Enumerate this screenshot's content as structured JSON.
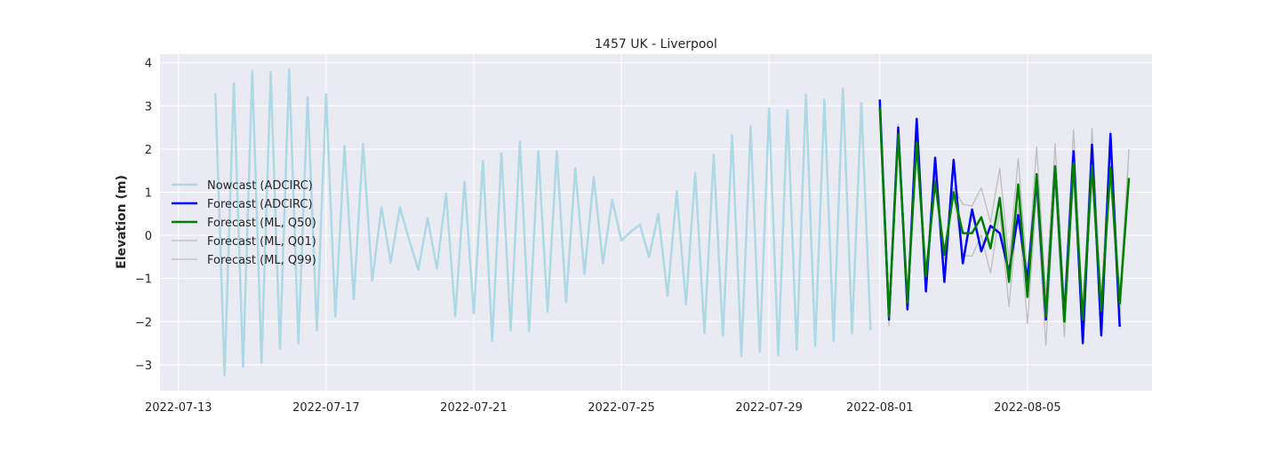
{
  "chart_data": {
    "type": "line",
    "title": "1457 UK - Liverpool",
    "xlabel": "",
    "ylabel": "Elevation (m)",
    "x_type": "date",
    "xlim": [
      "2022-07-12T12:00",
      "2022-08-08T09:00"
    ],
    "ylim": [
      -3.6,
      4.2
    ],
    "xticks": [
      "2022-07-13",
      "2022-07-17",
      "2022-07-21",
      "2022-07-25",
      "2022-07-29",
      "2022-08-01",
      "2022-08-05"
    ],
    "yticks": [
      -3,
      -2,
      -1,
      0,
      1,
      2,
      3,
      4
    ],
    "ytick_labels": [
      "−3",
      "−2",
      "−1",
      "0",
      "1",
      "2",
      "3",
      "4"
    ],
    "grid": true,
    "legend_position": "center-left",
    "series": [
      {
        "name": "Nowcast (ADCIRC)",
        "color": "#add8e6",
        "x": [
          "2022-07-14T00:00",
          "2022-07-14T06:00",
          "2022-07-14T12:00",
          "2022-07-14T18:00",
          "2022-07-15T00:00",
          "2022-07-15T06:00",
          "2022-07-15T12:00",
          "2022-07-15T18:00",
          "2022-07-16T00:00",
          "2022-07-16T06:00",
          "2022-07-16T12:00",
          "2022-07-16T18:00",
          "2022-07-17T00:00",
          "2022-07-17T06:00",
          "2022-07-17T12:00",
          "2022-07-17T18:00",
          "2022-07-18T00:00",
          "2022-07-18T06:00",
          "2022-07-18T12:00",
          "2022-07-18T18:00",
          "2022-07-19T00:00",
          "2022-07-19T06:00",
          "2022-07-19T12:00",
          "2022-07-19T18:00",
          "2022-07-20T00:00",
          "2022-07-20T06:00",
          "2022-07-20T12:00",
          "2022-07-20T18:00",
          "2022-07-21T00:00",
          "2022-07-21T06:00",
          "2022-07-21T12:00",
          "2022-07-21T18:00",
          "2022-07-22T00:00",
          "2022-07-22T06:00",
          "2022-07-22T12:00",
          "2022-07-22T18:00",
          "2022-07-23T00:00",
          "2022-07-23T06:00",
          "2022-07-23T12:00",
          "2022-07-23T18:00",
          "2022-07-24T00:00",
          "2022-07-24T06:00",
          "2022-07-24T12:00",
          "2022-07-24T18:00",
          "2022-07-25T00:00",
          "2022-07-25T06:00",
          "2022-07-25T12:00",
          "2022-07-25T18:00",
          "2022-07-26T00:00",
          "2022-07-26T06:00",
          "2022-07-26T12:00",
          "2022-07-26T18:00",
          "2022-07-27T00:00",
          "2022-07-27T06:00",
          "2022-07-27T12:00",
          "2022-07-27T18:00",
          "2022-07-28T00:00",
          "2022-07-28T06:00",
          "2022-07-28T12:00",
          "2022-07-28T18:00",
          "2022-07-29T00:00",
          "2022-07-29T06:00",
          "2022-07-29T12:00",
          "2022-07-29T18:00",
          "2022-07-30T00:00",
          "2022-07-30T06:00",
          "2022-07-30T12:00",
          "2022-07-30T18:00",
          "2022-07-31T00:00",
          "2022-07-31T06:00",
          "2022-07-31T12:00",
          "2022-07-31T18:00"
        ],
        "values": [
          3.3,
          -3.25,
          3.52,
          -3.05,
          3.8,
          -2.95,
          3.78,
          -2.63,
          3.85,
          -2.5,
          3.2,
          -2.2,
          3.27,
          -1.88,
          2.07,
          -1.48,
          2.12,
          -1.05,
          0.65,
          -0.63,
          0.65,
          -0.1,
          -0.8,
          0.4,
          -0.77,
          0.97,
          -1.87,
          1.25,
          -1.8,
          1.72,
          -2.45,
          1.9,
          -2.2,
          2.17,
          -2.22,
          1.95,
          -1.78,
          1.95,
          -1.55,
          1.55,
          -0.9,
          1.35,
          -0.65,
          0.83,
          -0.12,
          0.08,
          0.25,
          -0.5,
          0.5,
          -1.4,
          1.02,
          -1.6,
          1.45,
          -2.27,
          1.86,
          -2.33,
          2.32,
          -2.8,
          2.52,
          -2.7,
          2.95,
          -2.78,
          2.9,
          -2.65,
          3.27,
          -2.57,
          3.15,
          -2.45,
          3.4,
          -2.27,
          3.07,
          -2.2
        ]
      },
      {
        "name": "Forecast (ADCIRC)",
        "color": "#0000ff",
        "x": [
          "2022-08-01T00:00",
          "2022-08-01T06:00",
          "2022-08-01T12:00",
          "2022-08-01T18:00",
          "2022-08-02T00:00",
          "2022-08-02T06:00",
          "2022-08-02T12:00",
          "2022-08-02T18:00",
          "2022-08-03T00:00",
          "2022-08-03T06:00",
          "2022-08-03T12:00",
          "2022-08-03T18:00",
          "2022-08-04T00:00",
          "2022-08-04T06:00",
          "2022-08-04T12:00",
          "2022-08-04T18:00",
          "2022-08-05T00:00",
          "2022-08-05T06:00",
          "2022-08-05T12:00",
          "2022-08-05T18:00",
          "2022-08-06T00:00",
          "2022-08-06T06:00",
          "2022-08-06T12:00",
          "2022-08-06T18:00",
          "2022-08-07T00:00",
          "2022-08-07T06:00",
          "2022-08-07T12:00"
        ],
        "values": [
          3.15,
          -1.95,
          2.5,
          -1.72,
          2.7,
          -1.3,
          1.8,
          -1.08,
          1.75,
          -0.65,
          0.6,
          -0.37,
          0.22,
          0.05,
          -0.85,
          0.47,
          -1.05,
          1.3,
          -1.95,
          1.6,
          -1.9,
          1.95,
          -2.5,
          2.1,
          -2.32,
          2.35,
          -2.12
        ]
      },
      {
        "name": "Forecast (ML, Q50)",
        "color": "#008000",
        "x": [
          "2022-08-01T00:00",
          "2022-08-01T06:00",
          "2022-08-01T12:00",
          "2022-08-01T18:00",
          "2022-08-02T00:00",
          "2022-08-02T06:00",
          "2022-08-02T12:00",
          "2022-08-02T18:00",
          "2022-08-03T00:00",
          "2022-08-03T06:00",
          "2022-08-03T12:00",
          "2022-08-03T18:00",
          "2022-08-04T00:00",
          "2022-08-04T06:00",
          "2022-08-04T12:00",
          "2022-08-04T18:00",
          "2022-08-05T00:00",
          "2022-08-05T06:00",
          "2022-08-05T12:00",
          "2022-08-05T18:00",
          "2022-08-06T00:00",
          "2022-08-06T06:00",
          "2022-08-06T12:00",
          "2022-08-06T18:00",
          "2022-08-07T00:00",
          "2022-08-07T06:00",
          "2022-08-07T12:00",
          "2022-08-07T18:00"
        ],
        "values": [
          2.97,
          -1.9,
          2.35,
          -1.55,
          2.15,
          -0.95,
          1.25,
          -0.45,
          1.0,
          0.05,
          0.05,
          0.42,
          -0.3,
          0.87,
          -1.08,
          1.18,
          -1.43,
          1.42,
          -1.88,
          1.6,
          -2.0,
          1.67,
          -1.95,
          1.62,
          -1.75,
          1.58,
          -1.58,
          1.33
        ]
      },
      {
        "name": "Forecast (ML, Q01)",
        "color": "#bebebe",
        "x": [
          "2022-08-01T00:00",
          "2022-08-01T06:00",
          "2022-08-01T12:00",
          "2022-08-01T18:00",
          "2022-08-02T00:00",
          "2022-08-02T06:00",
          "2022-08-02T12:00",
          "2022-08-02T18:00",
          "2022-08-03T00:00",
          "2022-08-03T06:00",
          "2022-08-03T12:00",
          "2022-08-03T18:00",
          "2022-08-04T00:00",
          "2022-08-04T06:00",
          "2022-08-04T12:00",
          "2022-08-04T18:00",
          "2022-08-05T00:00",
          "2022-08-05T06:00",
          "2022-08-05T12:00",
          "2022-08-05T18:00",
          "2022-08-06T00:00",
          "2022-08-06T06:00",
          "2022-08-06T12:00",
          "2022-08-06T18:00",
          "2022-08-07T00:00",
          "2022-08-07T06:00",
          "2022-08-07T12:00",
          "2022-08-07T18:00"
        ],
        "values": [
          3.05,
          -2.1,
          2.57,
          -1.7,
          2.22,
          -1.1,
          1.3,
          -0.55,
          0.95,
          -0.47,
          -0.48,
          0.0,
          -0.88,
          0.55,
          -1.65,
          0.7,
          -2.05,
          0.95,
          -2.55,
          1.2,
          -2.35,
          1.3,
          -2.5,
          1.35,
          -2.0,
          1.4,
          -2.1,
          2.0
        ]
      },
      {
        "name": "Forecast (ML, Q99)",
        "color": "#bebebe",
        "x": [
          "2022-08-01T00:00",
          "2022-08-01T06:00",
          "2022-08-01T12:00",
          "2022-08-01T18:00",
          "2022-08-02T00:00",
          "2022-08-02T06:00",
          "2022-08-02T12:00",
          "2022-08-02T18:00",
          "2022-08-03T00:00",
          "2022-08-03T06:00",
          "2022-08-03T12:00",
          "2022-08-03T18:00",
          "2022-08-04T00:00",
          "2022-08-04T06:00",
          "2022-08-04T12:00",
          "2022-08-04T18:00",
          "2022-08-05T00:00",
          "2022-08-05T06:00",
          "2022-08-05T12:00",
          "2022-08-05T18:00",
          "2022-08-06T00:00",
          "2022-08-06T06:00",
          "2022-08-06T12:00",
          "2022-08-06T18:00",
          "2022-08-07T00:00",
          "2022-08-07T06:00",
          "2022-08-07T12:00",
          "2022-08-07T18:00"
        ],
        "values": [
          3.0,
          -1.9,
          2.4,
          -1.5,
          2.2,
          -0.9,
          1.35,
          -0.3,
          1.1,
          0.72,
          0.68,
          1.1,
          0.3,
          1.55,
          -0.6,
          1.78,
          -0.95,
          2.05,
          -1.4,
          2.12,
          -1.55,
          2.45,
          -1.85,
          2.48,
          -1.45,
          2.4,
          -1.45,
          2.0
        ]
      }
    ]
  }
}
